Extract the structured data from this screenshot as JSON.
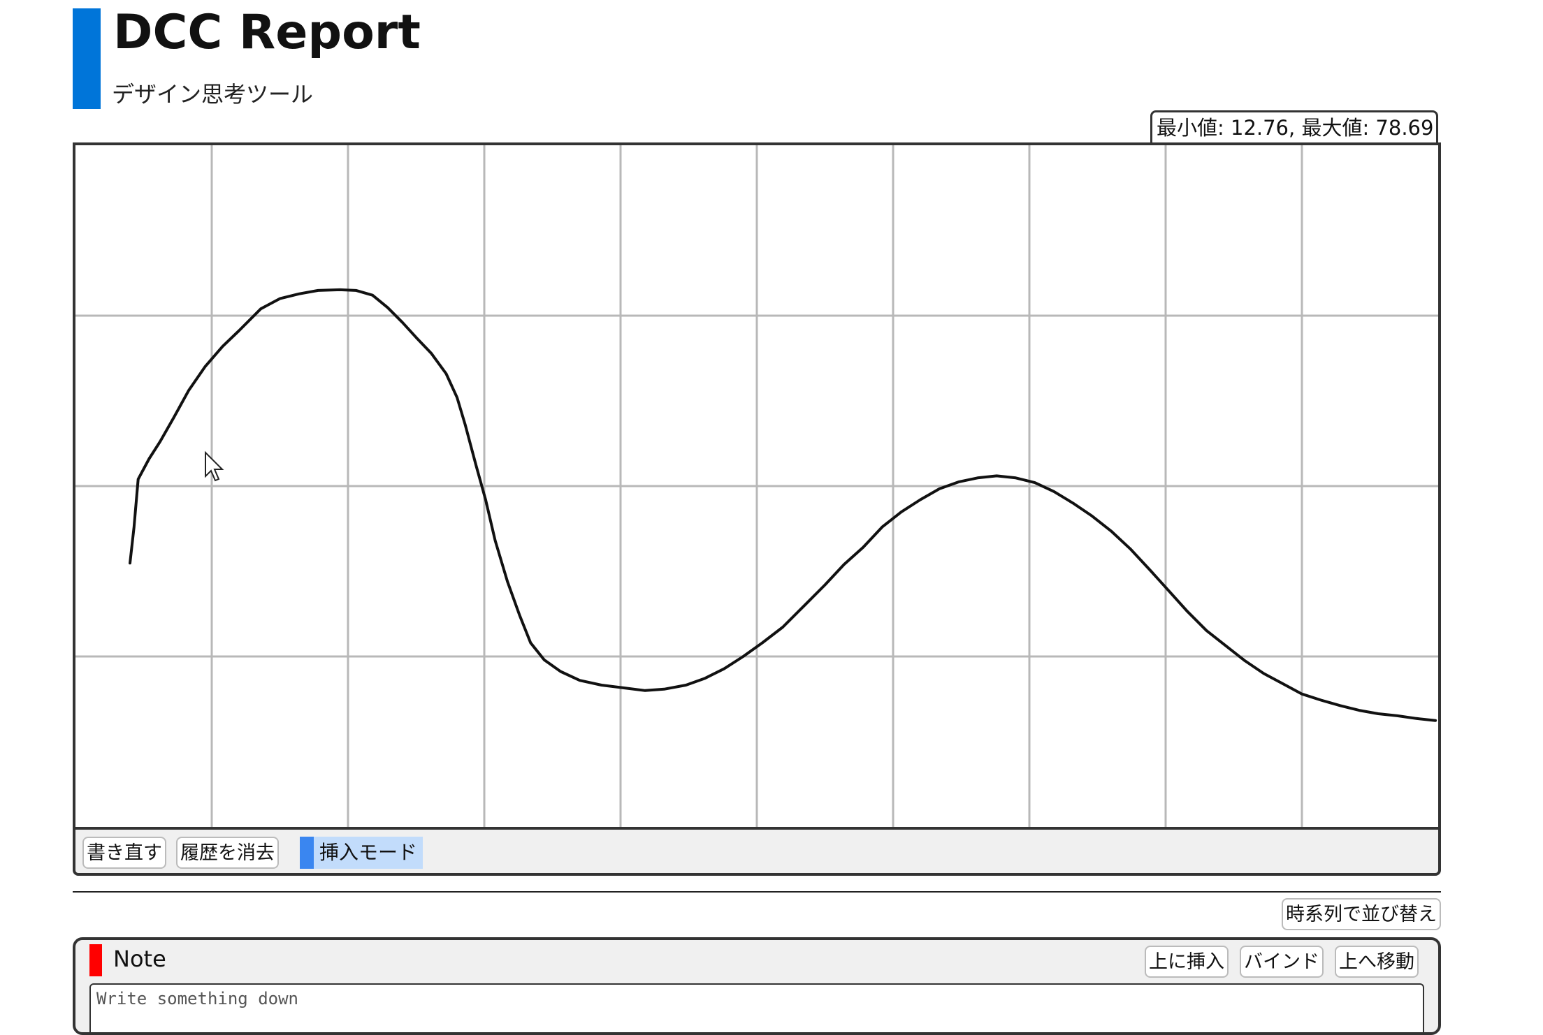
{
  "header": {
    "title": "DCC Report",
    "subtitle": "デザイン思考ツール",
    "accent_color": "#0075d9"
  },
  "chart_header": {
    "range_text": "最小値: 12.76, 最大値: 78.69"
  },
  "chart_data": {
    "type": "line",
    "grid": true,
    "grid_columns": 10,
    "grid_rows": 4,
    "x_range": [
      0,
      1
    ],
    "y_range": [
      0,
      1
    ],
    "series": [
      {
        "color": "#111111",
        "points": [
          [
            0.04,
            0.387
          ],
          [
            0.043,
            0.44
          ],
          [
            0.046,
            0.51
          ],
          [
            0.054,
            0.54
          ],
          [
            0.062,
            0.565
          ],
          [
            0.072,
            0.6
          ],
          [
            0.083,
            0.64
          ],
          [
            0.095,
            0.675
          ],
          [
            0.108,
            0.705
          ],
          [
            0.12,
            0.728
          ],
          [
            0.136,
            0.76
          ],
          [
            0.15,
            0.775
          ],
          [
            0.164,
            0.782
          ],
          [
            0.178,
            0.787
          ],
          [
            0.194,
            0.788
          ],
          [
            0.206,
            0.787
          ],
          [
            0.218,
            0.78
          ],
          [
            0.229,
            0.762
          ],
          [
            0.24,
            0.74
          ],
          [
            0.25,
            0.718
          ],
          [
            0.261,
            0.695
          ],
          [
            0.272,
            0.665
          ],
          [
            0.28,
            0.63
          ],
          [
            0.286,
            0.59
          ],
          [
            0.294,
            0.53
          ],
          [
            0.301,
            0.48
          ],
          [
            0.308,
            0.42
          ],
          [
            0.317,
            0.36
          ],
          [
            0.326,
            0.31
          ],
          [
            0.334,
            0.27
          ],
          [
            0.344,
            0.245
          ],
          [
            0.356,
            0.228
          ],
          [
            0.37,
            0.215
          ],
          [
            0.386,
            0.208
          ],
          [
            0.402,
            0.204
          ],
          [
            0.418,
            0.2
          ],
          [
            0.432,
            0.202
          ],
          [
            0.448,
            0.208
          ],
          [
            0.462,
            0.218
          ],
          [
            0.476,
            0.232
          ],
          [
            0.49,
            0.25
          ],
          [
            0.504,
            0.27
          ],
          [
            0.519,
            0.293
          ],
          [
            0.535,
            0.325
          ],
          [
            0.55,
            0.355
          ],
          [
            0.564,
            0.385
          ],
          [
            0.578,
            0.41
          ],
          [
            0.592,
            0.44
          ],
          [
            0.606,
            0.462
          ],
          [
            0.62,
            0.48
          ],
          [
            0.634,
            0.496
          ],
          [
            0.648,
            0.506
          ],
          [
            0.662,
            0.512
          ],
          [
            0.676,
            0.515
          ],
          [
            0.69,
            0.512
          ],
          [
            0.704,
            0.505
          ],
          [
            0.718,
            0.492
          ],
          [
            0.732,
            0.475
          ],
          [
            0.746,
            0.456
          ],
          [
            0.76,
            0.434
          ],
          [
            0.774,
            0.408
          ],
          [
            0.788,
            0.378
          ],
          [
            0.802,
            0.347
          ],
          [
            0.816,
            0.316
          ],
          [
            0.83,
            0.288
          ],
          [
            0.844,
            0.266
          ],
          [
            0.858,
            0.244
          ],
          [
            0.872,
            0.225
          ],
          [
            0.886,
            0.21
          ],
          [
            0.9,
            0.195
          ],
          [
            0.914,
            0.186
          ],
          [
            0.928,
            0.178
          ],
          [
            0.942,
            0.171
          ],
          [
            0.956,
            0.166
          ],
          [
            0.97,
            0.163
          ],
          [
            0.984,
            0.159
          ],
          [
            0.998,
            0.156
          ]
        ]
      }
    ]
  },
  "toolbar": {
    "redraw_label": "書き直す",
    "clear_history_label": "履歴を消去",
    "insert_mode_label": "挿入モード",
    "insert_mode_color": "#3a86f0"
  },
  "actions": {
    "sort_label": "時系列で並び替え"
  },
  "note": {
    "title": "Note",
    "marker_color": "#ff0000",
    "insert_above_label": "上に挿入",
    "bind_label": "バインド",
    "move_up_label": "上へ移動",
    "input_placeholder": "Write something down",
    "input_value": ""
  }
}
